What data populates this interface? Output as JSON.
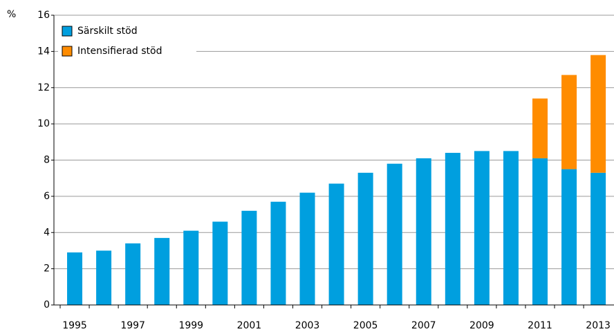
{
  "chart_data": {
    "type": "stacked_bar",
    "y_label": "%",
    "categories": [
      "1995",
      null,
      "1997",
      null,
      "1999",
      null,
      "2001",
      null,
      "2003",
      null,
      "2005",
      null,
      "2007",
      null,
      "2009",
      null,
      "2011",
      null,
      "2013"
    ],
    "series": [
      {
        "name": "Särskilt stöd",
        "color": "#009fdf",
        "values": [
          2.9,
          3.0,
          3.4,
          3.7,
          4.1,
          4.6,
          5.2,
          5.7,
          6.2,
          6.7,
          7.3,
          7.8,
          8.1,
          8.4,
          8.5,
          8.5,
          8.1,
          7.5,
          7.3
        ]
      },
      {
        "name": "Intensifierad stöd",
        "color": "#ff8c00",
        "values": [
          null,
          null,
          null,
          null,
          null,
          null,
          null,
          null,
          null,
          null,
          null,
          null,
          null,
          null,
          null,
          null,
          3.3,
          5.2,
          6.5
        ]
      }
    ],
    "ylim": [
      0,
      16
    ],
    "yticks": [
      0,
      2,
      4,
      6,
      8,
      10,
      12,
      14,
      16
    ],
    "grid": true,
    "legend": "top-left"
  }
}
